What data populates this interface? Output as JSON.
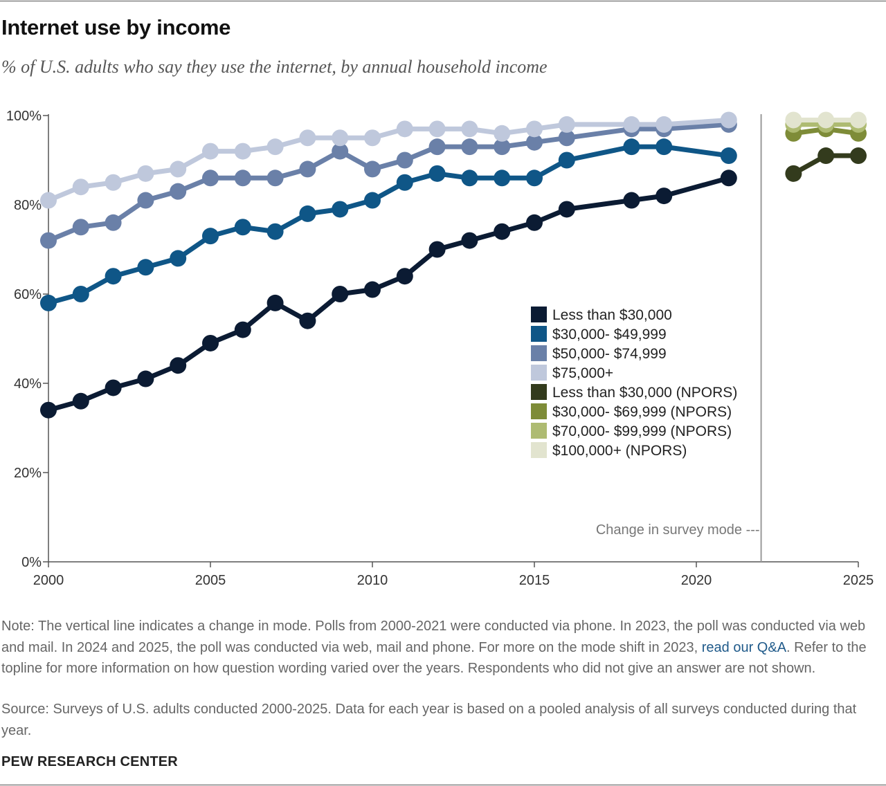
{
  "title": "Internet use by income",
  "subtitle": "% of U.S. adults who say they use the internet, by annual household income",
  "note_before_link": "Note: The vertical line indicates a change in mode. Polls from 2000-2021 were conducted via phone. In 2023, the poll was conducted via web and mail. In 2024 and 2025, the poll was conducted via web, mail and phone. For more on the mode shift in 2023, ",
  "note_link": "read our Q&A",
  "note_after_link": ". Refer to the topline for more information on how question wording varied over the years. Respondents who did not give an answer are not shown.",
  "source": "Source: Surveys of U.S. adults conducted 2000-2025. Data for each year is based on a pooled analysis of all surveys conducted during that year.",
  "organization": "PEW RESEARCH CENTER",
  "chart_data": {
    "type": "line",
    "xlim": [
      2000,
      2025
    ],
    "ylim": [
      0,
      100
    ],
    "x_ticks": [
      2000,
      2005,
      2010,
      2015,
      2020,
      2025
    ],
    "y_ticks": [
      0,
      20,
      40,
      60,
      80,
      100
    ],
    "y_tick_labels": [
      "0%",
      "20%",
      "40%",
      "60%",
      "80%",
      "100%"
    ],
    "mode_change_x": 2022,
    "mode_change_label": "Change in survey mode ---",
    "grid": false,
    "legend_position": "center-right",
    "series": [
      {
        "name": "Less than $30,000",
        "color": "#0b1b33",
        "x": [
          2000,
          2001,
          2002,
          2003,
          2004,
          2005,
          2006,
          2007,
          2008,
          2009,
          2010,
          2011,
          2012,
          2013,
          2014,
          2015,
          2016,
          2018,
          2019,
          2021
        ],
        "y": [
          34,
          36,
          39,
          41,
          44,
          49,
          52,
          58,
          54,
          60,
          61,
          64,
          70,
          72,
          74,
          76,
          79,
          81,
          82,
          86
        ]
      },
      {
        "name": "$30,000- $49,999",
        "color": "#0f5687",
        "x": [
          2000,
          2001,
          2002,
          2003,
          2004,
          2005,
          2006,
          2007,
          2008,
          2009,
          2010,
          2011,
          2012,
          2013,
          2014,
          2015,
          2016,
          2018,
          2019,
          2021
        ],
        "y": [
          58,
          60,
          64,
          66,
          68,
          73,
          75,
          74,
          78,
          79,
          81,
          85,
          87,
          86,
          86,
          86,
          90,
          93,
          93,
          91
        ]
      },
      {
        "name": "$50,000- $74,999",
        "color": "#6a80a8",
        "x": [
          2000,
          2001,
          2002,
          2003,
          2004,
          2005,
          2006,
          2007,
          2008,
          2009,
          2010,
          2011,
          2012,
          2013,
          2014,
          2015,
          2016,
          2018,
          2019,
          2021
        ],
        "y": [
          72,
          75,
          76,
          81,
          83,
          86,
          86,
          86,
          88,
          92,
          88,
          90,
          93,
          93,
          93,
          94,
          95,
          97,
          97,
          98
        ]
      },
      {
        "name": "$75,000+",
        "color": "#bfc8dc",
        "x": [
          2000,
          2001,
          2002,
          2003,
          2004,
          2005,
          2006,
          2007,
          2008,
          2009,
          2010,
          2011,
          2012,
          2013,
          2014,
          2015,
          2016,
          2018,
          2019,
          2021
        ],
        "y": [
          81,
          84,
          85,
          87,
          88,
          92,
          92,
          93,
          95,
          95,
          95,
          97,
          97,
          97,
          96,
          97,
          98,
          98,
          98,
          99
        ]
      },
      {
        "name": "Less than $30,000 (NPORS)",
        "color": "#333b1d",
        "x": [
          2023,
          2024,
          2025
        ],
        "y": [
          87,
          91,
          91
        ]
      },
      {
        "name": "$30,000- $69,999 (NPORS)",
        "color": "#7e8c38",
        "x": [
          2023,
          2024,
          2025
        ],
        "y": [
          96,
          97,
          96
        ]
      },
      {
        "name": "$70,000- $99,999 (NPORS)",
        "color": "#aebb72",
        "x": [
          2023,
          2024,
          2025
        ],
        "y": [
          98,
          98,
          98
        ]
      },
      {
        "name": "$100,000+ (NPORS)",
        "color": "#e2e4cf",
        "x": [
          2023,
          2024,
          2025
        ],
        "y": [
          99,
          99,
          99
        ]
      }
    ]
  }
}
